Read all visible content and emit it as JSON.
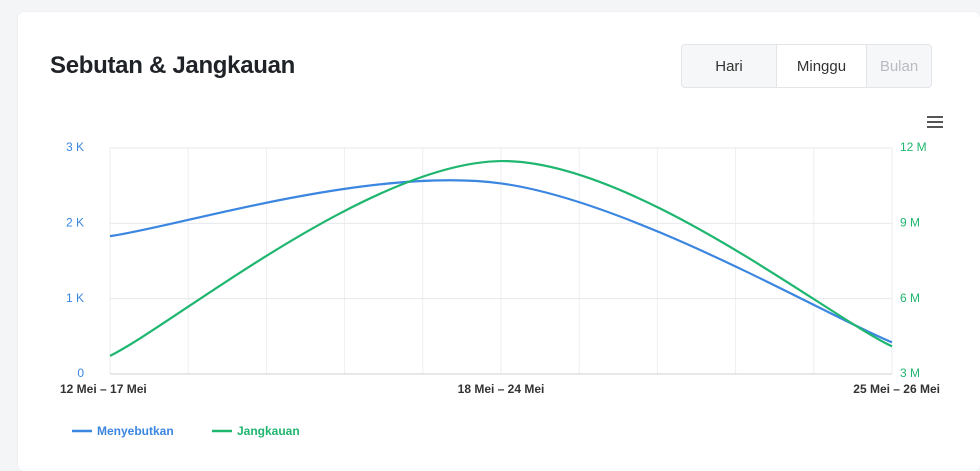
{
  "header": {
    "title": "Sebutan & Jangkauan"
  },
  "ui": {
    "buttons": [
      "Hari",
      "Minggu",
      "Bulan"
    ],
    "selected": "Minggu"
  },
  "chart_data": {
    "type": "line",
    "categories": [
      "12 Mei – 17 Mei",
      "18 Mei – 24 Mei",
      "25 Mei – 26 Mei"
    ],
    "series": [
      {
        "name": "Menyebutkan",
        "color": "#3b86e0",
        "values": [
          1830,
          2530,
          420
        ]
      },
      {
        "name": "Jangkauan",
        "color": "#1fb66f",
        "axis": "y2",
        "values": [
          3720000,
          11480000,
          4100000
        ]
      }
    ],
    "ylim": [
      0,
      3000
    ],
    "yticks": [
      0,
      {
        "value": 1000,
        "label": "1 K"
      },
      {
        "value": 2000,
        "label": "2 K"
      },
      {
        "value": 3000,
        "label": "3 K"
      }
    ],
    "y2lim": [
      3000000,
      12000000
    ],
    "y2ticks": [
      {
        "value": 3000000,
        "label": "3 M"
      },
      {
        "value": 6000000,
        "label": "6 M"
      },
      {
        "value": 9000000,
        "label": "9 M"
      },
      {
        "value": 12000000,
        "label": "12 M"
      }
    ],
    "grid": true,
    "legend": "bottom-left"
  }
}
